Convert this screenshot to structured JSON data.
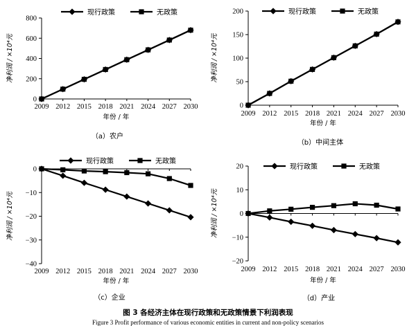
{
  "chart_data": [
    {
      "type": "line",
      "caption": "（a）农户",
      "ylabel": "净利润 / ×10⁴元",
      "xlabel": "年份 / 年",
      "x": [
        "2009",
        "2012",
        "2015",
        "2018",
        "2021",
        "2024",
        "2027",
        "2030"
      ],
      "ylim": [
        0,
        800
      ],
      "yticks": [
        0,
        200,
        400,
        600,
        800
      ],
      "legend": "top",
      "series": [
        {
          "name": "现行政策",
          "marker": "diamond",
          "values": [
            0,
            97,
            194,
            291,
            388,
            485,
            582,
            680
          ]
        },
        {
          "name": "无政策",
          "marker": "square",
          "values": [
            0,
            97,
            194,
            291,
            388,
            485,
            582,
            680
          ]
        }
      ]
    },
    {
      "type": "line",
      "caption": "（b）中间主体",
      "ylabel": "净利润 / ×10⁴元",
      "xlabel": "年份 / 年",
      "x": [
        "2009",
        "2012",
        "2015",
        "2018",
        "2021",
        "2024",
        "2027",
        "2030"
      ],
      "ylim": [
        0,
        200
      ],
      "yticks": [
        0,
        50,
        100,
        150,
        200
      ],
      "legend": "top",
      "series": [
        {
          "name": "现行政策",
          "marker": "diamond",
          "values": [
            0,
            25,
            51,
            76,
            101,
            126,
            151,
            177
          ]
        },
        {
          "name": "无政策",
          "marker": "square",
          "values": [
            0,
            25,
            51,
            76,
            101,
            126,
            151,
            177
          ]
        }
      ]
    },
    {
      "type": "line",
      "caption": "（c）企业",
      "ylabel": "净利润 / ×10⁴元",
      "xlabel": "年份 / 年",
      "x": [
        "2009",
        "2012",
        "2015",
        "2018",
        "2021",
        "2024",
        "2027",
        "2030"
      ],
      "ylim": [
        -40,
        0
      ],
      "yticks": [
        -40,
        -30,
        -20,
        -10,
        0
      ],
      "legend": "top",
      "series": [
        {
          "name": "现行政策",
          "marker": "diamond",
          "values": [
            0,
            -2.9,
            -5.9,
            -8.8,
            -11.7,
            -14.6,
            -17.5,
            -20.4
          ]
        },
        {
          "name": "无政策",
          "marker": "square",
          "values": [
            0,
            -0.4,
            -0.9,
            -1.2,
            -1.6,
            -2.1,
            -4.1,
            -7.0
          ]
        }
      ]
    },
    {
      "type": "line",
      "caption": "（d）产业",
      "ylabel": "净利润 / ×10⁴元",
      "xlabel": "年份 / 年",
      "x": [
        "2009",
        "2012",
        "2015",
        "2018",
        "2021",
        "2024",
        "2027",
        "2030"
      ],
      "ylim": [
        -20,
        20
      ],
      "yticks": [
        -20,
        -10,
        0,
        10,
        20
      ],
      "legend": "top",
      "series": [
        {
          "name": "现行政策",
          "marker": "diamond",
          "values": [
            0,
            -1.7,
            -3.5,
            -5.2,
            -7.0,
            -8.7,
            -10.4,
            -12.2
          ]
        },
        {
          "name": "无政策",
          "marker": "square",
          "values": [
            0,
            1.1,
            1.8,
            2.6,
            3.3,
            4.1,
            3.5,
            1.9
          ]
        }
      ]
    }
  ],
  "figure": {
    "caption_cn": "图 3    各经济主体在现行政策和无政策情景下利润表现",
    "caption_en": "Figure 3    Profit performance of various economic entities in current and non-policy scenarios"
  }
}
